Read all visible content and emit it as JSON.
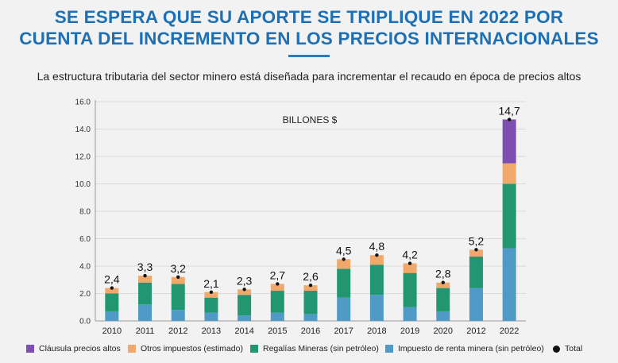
{
  "header": {
    "title_line1": "SE ESPERA QUE SU APORTE SE TRIPLIQUE EN 2022 POR",
    "title_line2": "CUENTA DEL INCREMENTO EN LOS PRECIOS INTERNACIONALES",
    "subtitle": "La estructura tributaria del sector minero está diseñada para incrementar el recaudo en época de precios altos"
  },
  "chart_data": {
    "type": "bar",
    "stacked": true,
    "unit_label": "BILLONES $",
    "categories": [
      "2010",
      "2011",
      "2012",
      "2013",
      "2014",
      "2015",
      "2016",
      "2017",
      "2018",
      "2019",
      "2020",
      "2012",
      "2022"
    ],
    "ylim": [
      0,
      16
    ],
    "yticks": [
      "0.0",
      "2.0",
      "4.0",
      "6.0",
      "8.0",
      "10.0",
      "12.0",
      "14.0",
      "16.0"
    ],
    "grid": true,
    "legend_position": "bottom",
    "series": [
      {
        "name": "Impuesto de renta minera (sin petróleo)",
        "color": "#4f9ac7",
        "values": [
          0.7,
          1.2,
          0.8,
          0.6,
          0.4,
          0.6,
          0.5,
          1.7,
          1.9,
          1.0,
          0.7,
          2.4,
          5.3
        ]
      },
      {
        "name": "Regalías Mineras (sin petróleo)",
        "color": "#229670",
        "values": [
          1.3,
          1.6,
          1.9,
          1.1,
          1.5,
          1.6,
          1.7,
          2.1,
          2.2,
          2.5,
          1.7,
          2.3,
          4.7
        ]
      },
      {
        "name": "Otros impuestos (estimado)",
        "color": "#f0a96a",
        "values": [
          0.4,
          0.5,
          0.5,
          0.4,
          0.4,
          0.5,
          0.4,
          0.7,
          0.7,
          0.7,
          0.4,
          0.5,
          1.5
        ]
      },
      {
        "name": "Cláusula precios altos",
        "color": "#7e4fb3",
        "values": [
          0,
          0,
          0,
          0,
          0,
          0,
          0,
          0,
          0,
          0,
          0,
          0,
          3.2
        ]
      }
    ],
    "totals": {
      "name": "Total",
      "color": "#111111",
      "values": [
        2.4,
        3.3,
        3.2,
        2.1,
        2.3,
        2.7,
        2.6,
        4.5,
        4.8,
        4.2,
        2.8,
        5.2,
        14.7
      ],
      "labels": [
        "2,4",
        "3,3",
        "3,2",
        "2,1",
        "2,3",
        "2,7",
        "2,6",
        "4,5",
        "4,8",
        "4,2",
        "2,8",
        "5,2",
        "14,7"
      ]
    },
    "legend_order": [
      "Cláusula precios altos",
      "Otros impuestos (estimado)",
      "Regalías Mineras (sin petróleo)",
      "Impuesto de renta minera (sin petróleo)",
      "Total"
    ]
  }
}
